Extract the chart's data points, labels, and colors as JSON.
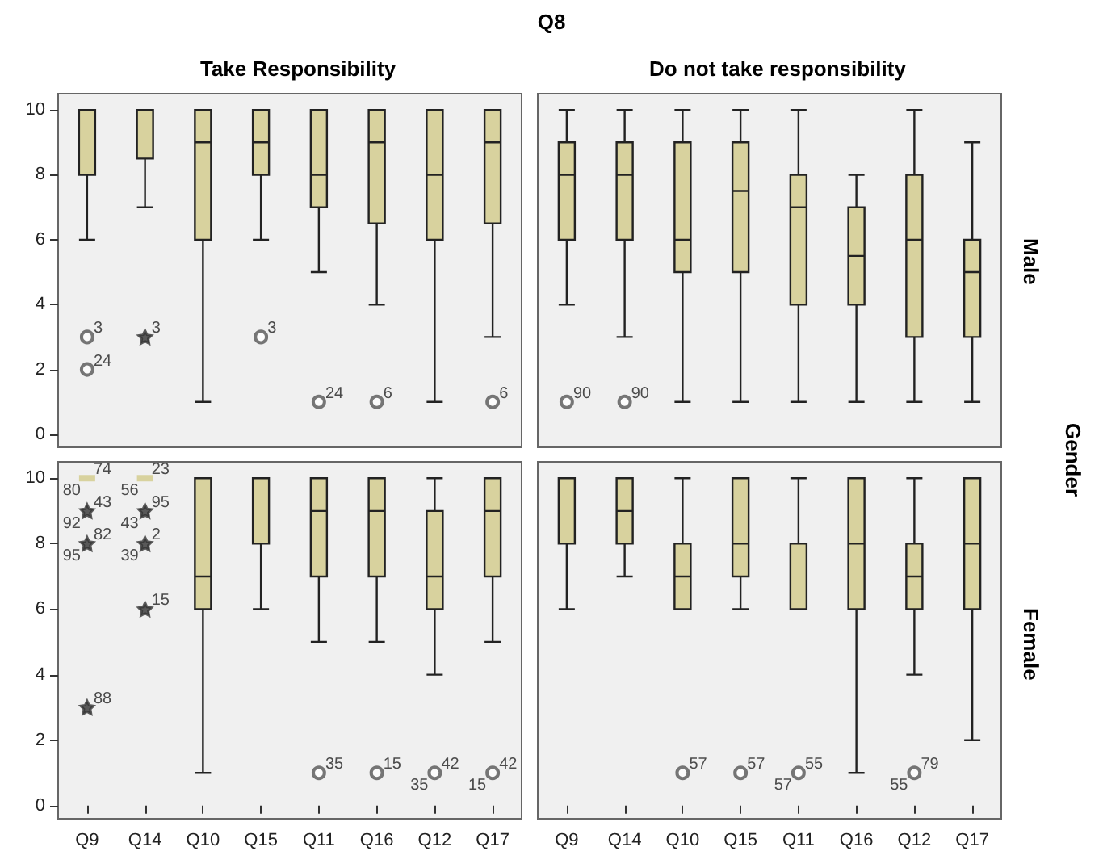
{
  "chart_data": [
    {
      "type": "box",
      "title": "Take Responsibility",
      "categories": [
        "Q9",
        "Q14",
        "Q10",
        "Q15",
        "Q11",
        "Q16",
        "Q12",
        "Q17"
      ],
      "ylim": [
        -0.4,
        10.5
      ],
      "yticks": [
        0,
        2,
        4,
        6,
        8,
        10
      ],
      "grid": false,
      "tick_labels": "y",
      "series": [
        {
          "color": "#d8d29e",
          "boxes": [
            {
              "low": 6,
              "q1": 8,
              "median": 10,
              "q3": 10,
              "high": 10
            },
            {
              "low": 7,
              "q1": 8.5,
              "median": 10,
              "q3": 10,
              "high": 10
            },
            {
              "low": 1,
              "q1": 6,
              "median": 9,
              "q3": 10,
              "high": 10
            },
            {
              "low": 6,
              "q1": 8,
              "median": 9,
              "q3": 10,
              "high": 10
            },
            {
              "low": 5,
              "q1": 7,
              "median": 8,
              "q3": 10,
              "high": 10
            },
            {
              "low": 4,
              "q1": 6.5,
              "median": 9,
              "q3": 10,
              "high": 10
            },
            {
              "low": 1,
              "q1": 6,
              "median": 8,
              "q3": 10,
              "high": 10
            },
            {
              "low": 3,
              "q1": 6.5,
              "median": 9,
              "q3": 10,
              "high": 10
            }
          ]
        },
        {
          "type": "scatter",
          "marker": "circle",
          "color": "#555555",
          "x": [
            "Q9",
            "Q9",
            "Q15",
            "Q11",
            "Q16",
            "Q17"
          ],
          "values": [
            3,
            2,
            3,
            1,
            1,
            1
          ]
        },
        {
          "type": "scatter",
          "marker": "star",
          "color": "#333333",
          "x": [
            "Q14"
          ],
          "values": [
            3
          ]
        }
      ],
      "annotations": [
        "Q8",
        {
          "text": "3",
          "x": "Q9",
          "y": 3
        },
        {
          "text": "24",
          "x": "Q9",
          "y": 2
        },
        {
          "text": "3",
          "x": "Q14",
          "y": 3
        },
        {
          "text": "3",
          "x": "Q15",
          "y": 3
        },
        {
          "text": "24",
          "x": "Q11",
          "y": 1
        },
        {
          "text": "6",
          "x": "Q16",
          "y": 1
        },
        {
          "text": "6",
          "x": "Q17",
          "y": 1
        }
      ]
    },
    {
      "type": "box",
      "title": "Do not take responsibility",
      "y2label": "Male",
      "categories": [
        "Q9",
        "Q14",
        "Q10",
        "Q15",
        "Q11",
        "Q16",
        "Q12",
        "Q17"
      ],
      "ylim": [
        -0.4,
        10.5
      ],
      "yticks": [
        0,
        2,
        4,
        6,
        8,
        10
      ],
      "grid": false,
      "tick_labels": false,
      "series": [
        {
          "color": "#d8d29e",
          "boxes": [
            {
              "low": 4,
              "q1": 6,
              "median": 8,
              "q3": 9,
              "high": 10
            },
            {
              "low": 3,
              "q1": 6,
              "median": 8,
              "q3": 9,
              "high": 10
            },
            {
              "low": 1,
              "q1": 5,
              "median": 6,
              "q3": 9,
              "high": 10
            },
            {
              "low": 1,
              "q1": 5,
              "median": 7.5,
              "q3": 9,
              "high": 10
            },
            {
              "low": 1,
              "q1": 4,
              "median": 7,
              "q3": 8,
              "high": 10
            },
            {
              "low": 1,
              "q1": 4,
              "median": 5.5,
              "q3": 7,
              "high": 8
            },
            {
              "low": 1,
              "q1": 3,
              "median": 6,
              "q3": 8,
              "high": 10
            },
            {
              "low": 1,
              "q1": 3,
              "median": 5,
              "q3": 6,
              "high": 9
            }
          ]
        },
        {
          "type": "scatter",
          "marker": "circle",
          "color": "#555555",
          "x": [
            "Q9",
            "Q14"
          ],
          "values": [
            1,
            1
          ]
        }
      ],
      "annotations": [
        "Gender",
        {
          "text": "90",
          "x": "Q9",
          "y": 1
        },
        {
          "text": "90",
          "x": "Q14",
          "y": 1
        }
      ]
    },
    {
      "type": "box",
      "categories": [
        "Q9",
        "Q14",
        "Q10",
        "Q15",
        "Q11",
        "Q16",
        "Q12",
        "Q17"
      ],
      "ylim": [
        -0.4,
        10.5
      ],
      "yticks": [
        0,
        2,
        4,
        6,
        8,
        10
      ],
      "grid": false,
      "series": [
        {
          "color": "#d8d29e",
          "boxes": [
            {
              "low": 10,
              "q1": 10,
              "median": 10,
              "q3": 10,
              "high": 10
            },
            {
              "low": 10,
              "q1": 10,
              "median": 10,
              "q3": 10,
              "high": 10
            },
            {
              "low": 1,
              "q1": 6,
              "median": 7,
              "q3": 10,
              "high": 10
            },
            {
              "low": 6,
              "q1": 8,
              "median": 10,
              "q3": 10,
              "high": 10
            },
            {
              "low": 5,
              "q1": 7,
              "median": 9,
              "q3": 10,
              "high": 10
            },
            {
              "low": 5,
              "q1": 7,
              "median": 9,
              "q3": 10,
              "high": 10
            },
            {
              "low": 4,
              "q1": 6,
              "median": 7,
              "q3": 9,
              "high": 10
            },
            {
              "low": 5,
              "q1": 7,
              "median": 9,
              "q3": 10,
              "high": 10
            }
          ]
        },
        {
          "type": "scatter",
          "marker": "circle",
          "color": "#555555",
          "x": [
            "Q11",
            "Q16",
            "Q12",
            "Q17"
          ],
          "values": [
            1,
            1,
            1,
            1
          ]
        },
        {
          "type": "scatter",
          "marker": "star",
          "color": "#333333",
          "x": [
            "Q9",
            "Q9",
            "Q9",
            "Q14",
            "Q14",
            "Q14"
          ],
          "values": [
            9,
            8,
            3,
            9,
            8,
            6
          ]
        }
      ],
      "annotations": [
        {
          "text": "74",
          "x": "Q9",
          "y": 10
        },
        {
          "text": "80",
          "x": "Q9",
          "y": 10
        },
        {
          "text": "43",
          "x": "Q9",
          "y": 9
        },
        {
          "text": "92",
          "x": "Q9",
          "y": 9
        },
        {
          "text": "82",
          "x": "Q9",
          "y": 8
        },
        {
          "text": "95",
          "x": "Q9",
          "y": 8
        },
        {
          "text": "88",
          "x": "Q9",
          "y": 3
        },
        {
          "text": "23",
          "x": "Q14",
          "y": 10
        },
        {
          "text": "56",
          "x": "Q14",
          "y": 10
        },
        {
          "text": "95",
          "x": "Q14",
          "y": 9
        },
        {
          "text": "43",
          "x": "Q14",
          "y": 9
        },
        {
          "text": "2",
          "x": "Q14",
          "y": 8
        },
        {
          "text": "39",
          "x": "Q14",
          "y": 8
        },
        {
          "text": "15",
          "x": "Q14",
          "y": 6
        },
        {
          "text": "35",
          "x": "Q11",
          "y": 1
        },
        {
          "text": "15",
          "x": "Q16",
          "y": 1
        },
        {
          "text": "42",
          "x": "Q12",
          "y": 1
        },
        {
          "text": "35",
          "x": "Q12",
          "y": 1
        },
        {
          "text": "42",
          "x": "Q17",
          "y": 1
        },
        {
          "text": "15",
          "x": "Q17",
          "y": 1
        }
      ]
    },
    {
      "type": "box",
      "y2label": "Female",
      "categories": [
        "Q9",
        "Q14",
        "Q10",
        "Q15",
        "Q11",
        "Q16",
        "Q12",
        "Q17"
      ],
      "ylim": [
        -0.4,
        10.5
      ],
      "yticks": [
        0,
        2,
        4,
        6,
        8,
        10
      ],
      "grid": false,
      "tick_labels": "x",
      "series": [
        {
          "color": "#d8d29e",
          "boxes": [
            {
              "low": 6,
              "q1": 8,
              "median": 10,
              "q3": 10,
              "high": 10
            },
            {
              "low": 7,
              "q1": 8,
              "median": 9,
              "q3": 10,
              "high": 10
            },
            {
              "low": 6,
              "q1": 6,
              "median": 7,
              "q3": 8,
              "high": 10
            },
            {
              "low": 6,
              "q1": 7,
              "median": 8,
              "q3": 10,
              "high": 10
            },
            {
              "low": 6,
              "q1": 6,
              "median": 6,
              "q3": 8,
              "high": 10
            },
            {
              "low": 1,
              "q1": 6,
              "median": 8,
              "q3": 10,
              "high": 10
            },
            {
              "low": 4,
              "q1": 6,
              "median": 7,
              "q3": 8,
              "high": 10
            },
            {
              "low": 2,
              "q1": 6,
              "median": 8,
              "q3": 10,
              "high": 10
            }
          ]
        },
        {
          "type": "scatter",
          "marker": "circle",
          "color": "#555555",
          "x": [
            "Q10",
            "Q15",
            "Q11",
            "Q12"
          ],
          "values": [
            1,
            1,
            1,
            1
          ]
        }
      ],
      "annotations": [
        {
          "text": "57",
          "x": "Q10",
          "y": 1
        },
        {
          "text": "57",
          "x": "Q15",
          "y": 1
        },
        {
          "text": "55",
          "x": "Q11",
          "y": 1
        },
        {
          "text": "57",
          "x": "Q11",
          "y": 1
        },
        {
          "text": "79",
          "x": "Q12",
          "y": 1
        },
        {
          "text": "55",
          "x": "Q12",
          "y": 1
        }
      ]
    }
  ]
}
